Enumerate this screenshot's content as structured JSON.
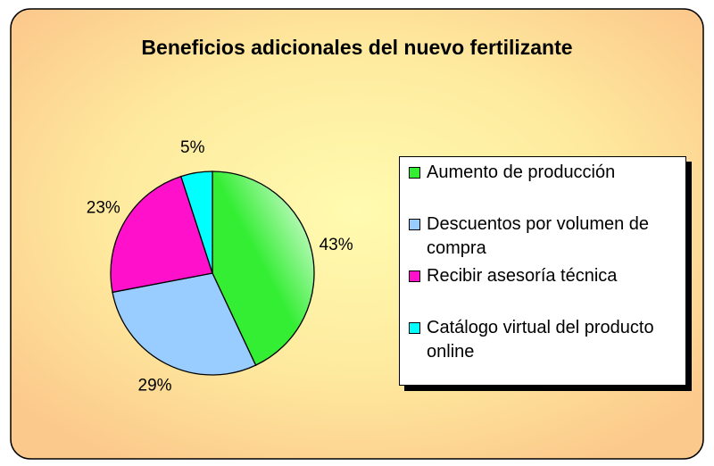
{
  "chart_data": {
    "type": "pie",
    "title": "Beneficios adicionales del nuevo fertilizante",
    "categories": [
      "Aumento de producción",
      "Descuentos por volumen de compra",
      "Recibir asesoría técnica",
      "Catálogo virtual del producto online"
    ],
    "values": [
      43,
      29,
      23,
      5
    ],
    "value_labels": [
      "43%",
      "29%",
      "23%",
      "5%"
    ],
    "colors": [
      "#33ee33",
      "#99ccff",
      "#ff11cc",
      "#00ffff"
    ],
    "legend": "right"
  }
}
